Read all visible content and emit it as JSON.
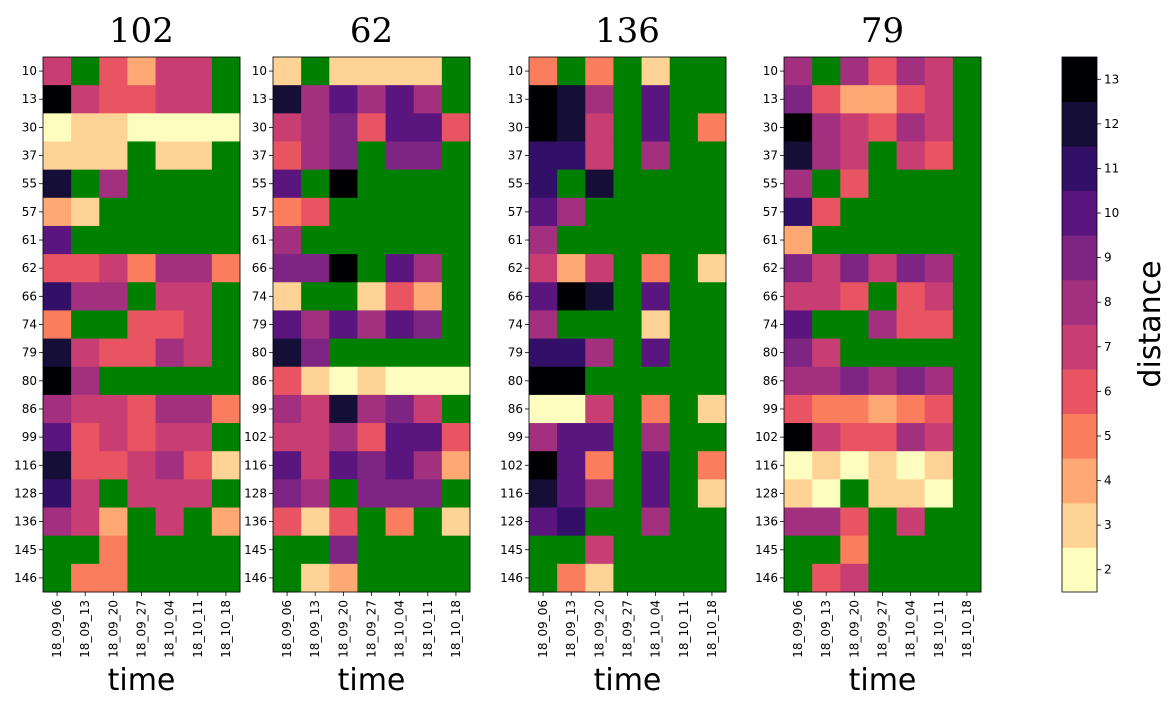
{
  "chart_data": {
    "type": "heatmap",
    "missing_color": "#008000",
    "colormap": "magma_r",
    "colorbar": {
      "label": "distance",
      "ticks": [
        2,
        3,
        4,
        5,
        6,
        7,
        8,
        9,
        10,
        11,
        12,
        13
      ],
      "bins": [
        {
          "value": 2,
          "color": "#fcfdbf"
        },
        {
          "value": 3,
          "color": "#fed395"
        },
        {
          "value": 4,
          "color": "#fea973"
        },
        {
          "value": 5,
          "color": "#fa7d5e"
        },
        {
          "value": 6,
          "color": "#e95462"
        },
        {
          "value": 7,
          "color": "#c83e73"
        },
        {
          "value": 8,
          "color": "#a3307e"
        },
        {
          "value": 9,
          "color": "#7e2482"
        },
        {
          "value": 10,
          "color": "#5a167e"
        },
        {
          "value": 11,
          "color": "#331067"
        },
        {
          "value": 12,
          "color": "#150e37"
        },
        {
          "value": 13,
          "color": "#000004"
        }
      ]
    },
    "x_categories": [
      "18_09_06",
      "18_09_13",
      "18_09_20",
      "18_09_27",
      "18_10_04",
      "18_10_11",
      "18_10_18"
    ],
    "panels": [
      {
        "title": "102",
        "xlabel": "time",
        "rows": [
          "10",
          "13",
          "30",
          "37",
          "55",
          "57",
          "61",
          "62",
          "66",
          "74",
          "79",
          "80",
          "86",
          "99",
          "116",
          "128",
          "136",
          "145",
          "146"
        ],
        "values": [
          [
            7,
            null,
            6,
            4,
            7,
            7,
            null
          ],
          [
            13,
            7,
            6,
            6,
            7,
            7,
            null
          ],
          [
            2,
            3,
            3,
            2,
            2,
            2,
            2
          ],
          [
            3,
            3,
            3,
            null,
            3,
            3,
            null
          ],
          [
            12,
            null,
            8,
            null,
            null,
            null,
            null
          ],
          [
            4,
            3,
            null,
            null,
            null,
            null,
            null
          ],
          [
            10,
            null,
            null,
            null,
            null,
            null,
            null
          ],
          [
            6,
            6,
            7,
            5,
            8,
            8,
            5
          ],
          [
            11,
            8,
            8,
            null,
            7,
            7,
            null
          ],
          [
            5,
            null,
            null,
            6,
            6,
            7,
            null
          ],
          [
            12,
            7,
            6,
            6,
            8,
            7,
            null
          ],
          [
            13,
            8,
            null,
            null,
            null,
            null,
            null
          ],
          [
            8,
            7,
            7,
            6,
            8,
            8,
            5
          ],
          [
            10,
            6,
            7,
            6,
            7,
            7,
            null
          ],
          [
            12,
            6,
            6,
            7,
            8,
            6,
            3
          ],
          [
            11,
            7,
            null,
            7,
            7,
            7,
            null
          ],
          [
            8,
            7,
            4,
            null,
            7,
            null,
            4
          ],
          [
            null,
            null,
            5,
            null,
            null,
            null,
            null
          ],
          [
            null,
            5,
            5,
            null,
            null,
            null,
            null
          ]
        ]
      },
      {
        "title": "62",
        "xlabel": "time",
        "rows": [
          "10",
          "13",
          "30",
          "37",
          "55",
          "57",
          "61",
          "66",
          "74",
          "79",
          "80",
          "86",
          "99",
          "102",
          "116",
          "128",
          "136",
          "145",
          "146"
        ],
        "values": [
          [
            3,
            null,
            3,
            3,
            3,
            3,
            null
          ],
          [
            12,
            8,
            10,
            8,
            10,
            8,
            null
          ],
          [
            7,
            8,
            9,
            6,
            10,
            10,
            6
          ],
          [
            6,
            8,
            9,
            null,
            9,
            9,
            null
          ],
          [
            10,
            null,
            13,
            null,
            null,
            null,
            null
          ],
          [
            5,
            6,
            null,
            null,
            null,
            null,
            null
          ],
          [
            8,
            null,
            null,
            null,
            null,
            null,
            null
          ],
          [
            9,
            9,
            13,
            null,
            10,
            8,
            null
          ],
          [
            3,
            null,
            null,
            3,
            6,
            4,
            null
          ],
          [
            10,
            8,
            10,
            8,
            10,
            9,
            null
          ],
          [
            12,
            9,
            null,
            null,
            null,
            null,
            null
          ],
          [
            6,
            3,
            2,
            3,
            2,
            2,
            2
          ],
          [
            8,
            7,
            12,
            8,
            9,
            7,
            null
          ],
          [
            7,
            7,
            8,
            6,
            10,
            10,
            6
          ],
          [
            10,
            7,
            10,
            9,
            10,
            8,
            4
          ],
          [
            9,
            8,
            null,
            9,
            9,
            9,
            null
          ],
          [
            6,
            3,
            6,
            null,
            5,
            null,
            3
          ],
          [
            null,
            null,
            9,
            null,
            null,
            null,
            null
          ],
          [
            null,
            3,
            4,
            null,
            null,
            null,
            null
          ]
        ]
      },
      {
        "title": "136",
        "xlabel": "time",
        "rows": [
          "10",
          "13",
          "30",
          "37",
          "55",
          "57",
          "61",
          "62",
          "66",
          "74",
          "79",
          "80",
          "86",
          "99",
          "102",
          "116",
          "128",
          "145",
          "146"
        ],
        "values": [
          [
            5,
            null,
            5,
            null,
            3,
            null,
            null
          ],
          [
            13,
            12,
            8,
            null,
            10,
            null,
            null
          ],
          [
            13,
            12,
            7,
            null,
            10,
            null,
            5
          ],
          [
            11,
            11,
            7,
            null,
            8,
            null,
            null
          ],
          [
            11,
            null,
            12,
            null,
            null,
            null,
            null
          ],
          [
            10,
            8,
            null,
            null,
            null,
            null,
            null
          ],
          [
            8,
            null,
            null,
            null,
            null,
            null,
            null
          ],
          [
            7,
            4,
            7,
            null,
            5,
            null,
            3
          ],
          [
            10,
            13,
            12,
            null,
            10,
            null,
            null
          ],
          [
            8,
            null,
            null,
            null,
            3,
            null,
            null
          ],
          [
            11,
            11,
            8,
            null,
            10,
            null,
            null
          ],
          [
            13,
            13,
            null,
            null,
            null,
            null,
            null
          ],
          [
            2,
            2,
            7,
            null,
            5,
            null,
            3
          ],
          [
            8,
            10,
            10,
            null,
            8,
            null,
            null
          ],
          [
            13,
            10,
            5,
            null,
            10,
            null,
            5
          ],
          [
            12,
            10,
            8,
            null,
            10,
            null,
            3
          ],
          [
            10,
            11,
            null,
            null,
            8,
            null,
            null
          ],
          [
            null,
            null,
            7,
            null,
            null,
            null,
            null
          ],
          [
            null,
            5,
            3,
            null,
            null,
            null,
            null
          ]
        ]
      },
      {
        "title": "79",
        "xlabel": "time",
        "rows": [
          "10",
          "13",
          "30",
          "37",
          "55",
          "57",
          "61",
          "62",
          "66",
          "74",
          "80",
          "86",
          "99",
          "102",
          "116",
          "128",
          "136",
          "145",
          "146"
        ],
        "values": [
          [
            8,
            null,
            8,
            6,
            8,
            7,
            null
          ],
          [
            9,
            6,
            4,
            4,
            6,
            7,
            null
          ],
          [
            13,
            8,
            7,
            6,
            8,
            7,
            null
          ],
          [
            12,
            8,
            7,
            null,
            7,
            6,
            null
          ],
          [
            8,
            null,
            6,
            null,
            null,
            null,
            null
          ],
          [
            11,
            6,
            null,
            null,
            null,
            null,
            null
          ],
          [
            4,
            null,
            null,
            null,
            null,
            null,
            null
          ],
          [
            9,
            7,
            9,
            7,
            9,
            8,
            null
          ],
          [
            7,
            7,
            6,
            null,
            6,
            7,
            null
          ],
          [
            10,
            null,
            null,
            8,
            6,
            6,
            null
          ],
          [
            9,
            7,
            null,
            null,
            null,
            null,
            null
          ],
          [
            8,
            8,
            9,
            8,
            9,
            8,
            null
          ],
          [
            6,
            5,
            5,
            4,
            5,
            6,
            null
          ],
          [
            13,
            7,
            6,
            6,
            8,
            7,
            null
          ],
          [
            2,
            3,
            2,
            3,
            2,
            3,
            null
          ],
          [
            3,
            2,
            null,
            3,
            3,
            2,
            null
          ],
          [
            8,
            8,
            6,
            null,
            7,
            null,
            null
          ],
          [
            null,
            null,
            5,
            null,
            null,
            null,
            null
          ],
          [
            null,
            6,
            7,
            null,
            null,
            null,
            null
          ]
        ]
      }
    ]
  }
}
